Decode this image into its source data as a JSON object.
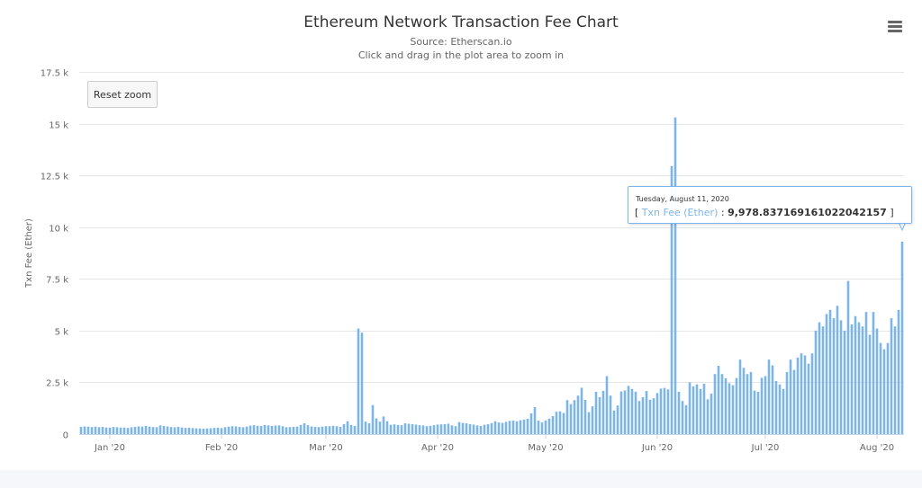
{
  "page": {
    "title": "Ethereum Network Transaction Fee Chart",
    "source": "Source: Etherscan.io",
    "hint": "Click and drag in the plot area to zoom in",
    "reset_label": "Reset zoom",
    "menu_icon": "hamburger-menu-icon"
  },
  "tooltip": {
    "date": "Tuesday, August 11, 2020",
    "bracket_open": "[",
    "series": "Txn Fee (Ether)",
    "sep": ":",
    "value": "9,978.837169161022042157",
    "bracket_close": "]"
  },
  "chart_data": {
    "type": "bar",
    "title": "Ethereum Network Transaction Fee Chart",
    "subtitle": "Source: Etherscan.io",
    "ylabel": "Txn Fee (Ether)",
    "xlabel": "",
    "ylim": [
      0,
      17500
    ],
    "yticks": [
      0,
      2500,
      5000,
      7500,
      10000,
      12500,
      15000,
      17500
    ],
    "ytick_labels": [
      "0",
      "2.5 k",
      "5 k",
      "7.5 k",
      "10 k",
      "12.5 k",
      "15 k",
      "17.5 k"
    ],
    "xticks": [
      {
        "label": "Jan '20",
        "day": 8
      },
      {
        "label": "Feb '20",
        "day": 39
      },
      {
        "label": "Mar '20",
        "day": 68
      },
      {
        "label": "Apr '20",
        "day": 99
      },
      {
        "label": "May '20",
        "day": 129
      },
      {
        "label": "Jun '20",
        "day": 160
      },
      {
        "label": "Jul '20",
        "day": 190
      },
      {
        "label": "Aug '20",
        "day": 221
      }
    ],
    "grid": true,
    "legend": "none",
    "color": "#7cb5ec",
    "x_start": "2019-12-25",
    "values": [
      350,
      370,
      360,
      340,
      360,
      330,
      350,
      320,
      310,
      340,
      330,
      310,
      320,
      300,
      330,
      350,
      370,
      360,
      390,
      360,
      340,
      330,
      420,
      390,
      370,
      340,
      330,
      350,
      320,
      300,
      310,
      290,
      280,
      270,
      260,
      270,
      280,
      300,
      310,
      290,
      330,
      360,
      380,
      370,
      350,
      330,
      360,
      410,
      430,
      400,
      390,
      440,
      420,
      390,
      410,
      420,
      380,
      330,
      340,
      350,
      360,
      440,
      520,
      430,
      370,
      350,
      340,
      360,
      380,
      380,
      400,
      380,
      350,
      480,
      620,
      440,
      390,
      5100,
      4900,
      600,
      520,
      1400,
      760,
      600,
      850,
      620,
      450,
      470,
      440,
      430,
      520,
      500,
      480,
      460,
      430,
      420,
      380,
      400,
      430,
      460,
      470,
      480,
      500,
      420,
      380,
      580,
      540,
      520,
      480,
      460,
      420,
      390,
      450,
      480,
      530,
      620,
      560,
      540,
      590,
      640,
      650,
      620,
      670,
      700,
      740,
      1000,
      1300,
      650,
      560,
      660,
      750,
      870,
      1080,
      1100,
      1020,
      1640,
      1450,
      1640,
      1860,
      2240,
      1650,
      1060,
      1340,
      2040,
      1790,
      2090,
      2800,
      1860,
      1140,
      1380,
      2060,
      2110,
      2330,
      2180,
      2050,
      1600,
      1780,
      2080,
      1660,
      1730,
      1980,
      2200,
      2230,
      2160,
      12950,
      15300,
      2040,
      1600,
      1400,
      2500,
      2300,
      2400,
      2180,
      2430,
      1680,
      1960,
      2900,
      3300,
      2900,
      2700,
      2460,
      2360,
      2710,
      3600,
      3200,
      2900,
      3000,
      2100,
      2040,
      2720,
      2800,
      3600,
      3320,
      2560,
      2400,
      2180,
      3000,
      3600,
      3100,
      3700,
      3900,
      3800,
      3400,
      3900,
      5000,
      5400,
      5200,
      5800,
      6000,
      5600,
      6200,
      5500,
      5000,
      7400,
      5300,
      5700,
      5400,
      5200,
      5900,
      4800,
      5900,
      5100,
      4400,
      4100,
      4400,
      5600,
      5200,
      6000,
      9300
    ]
  }
}
